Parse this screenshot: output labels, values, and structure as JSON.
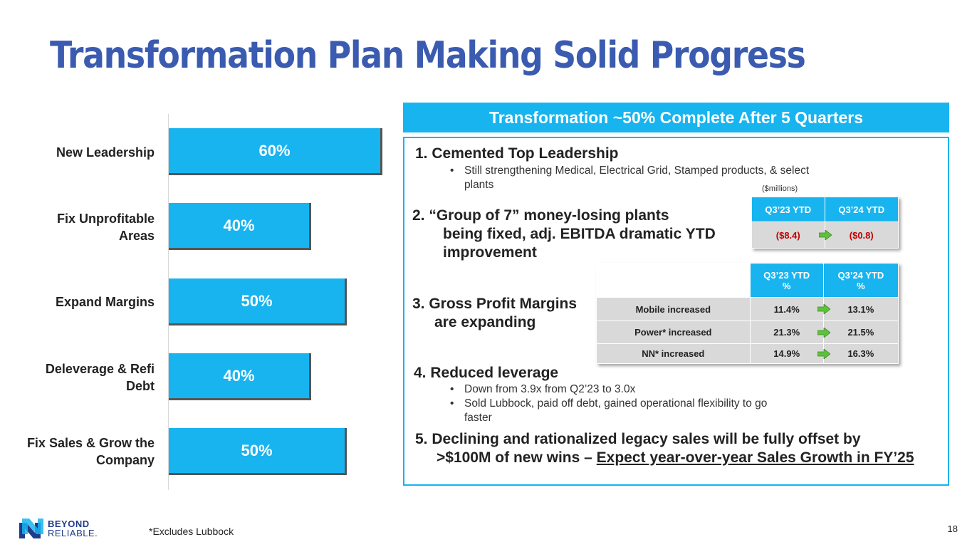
{
  "title": "Transformation Plan Making Solid Progress",
  "chart_data": {
    "type": "bar",
    "orientation": "horizontal",
    "categories": [
      "New Leadership",
      "Fix Unprofitable Areas",
      "Expand Margins",
      "Deleverage & Refi Debt",
      "Fix Sales & Grow the Company"
    ],
    "values": [
      60,
      40,
      50,
      40,
      50
    ],
    "value_labels": [
      "60%",
      "40%",
      "50%",
      "40%",
      "50%"
    ],
    "xlim": [
      0,
      100
    ]
  },
  "chart_cats": {
    "c0": "New Leadership",
    "c1a": "Fix Unprofitable",
    "c1b": "Areas",
    "c2": "Expand Margins",
    "c3a": "Deleverage & Refi",
    "c3b": "Debt",
    "c4a": "Fix Sales & Grow the",
    "c4b": "Company"
  },
  "banner": "Transformation ~50% Complete After 5 Quarters",
  "item1": {
    "heading": "1. Cemented Top Leadership",
    "bullet_line1": "Still strengthening Medical, Electrical Grid, Stamped products, & select",
    "bullet_line2": "plants"
  },
  "item2": {
    "line1": "2. “Group of 7” money-losing plants",
    "line2": "being fixed, adj. EBITDA dramatic YTD",
    "line3": "improvement",
    "units_note": "($millions)",
    "table": {
      "col1": "Q3’23 YTD",
      "col2": "Q3’24 YTD",
      "val1": "($8.4)",
      "val2": "($0.8)"
    }
  },
  "item3": {
    "line1": "3. Gross Profit Margins",
    "line2": "are expanding",
    "table": {
      "col1a": "Q3’23 YTD",
      "col1b": "%",
      "col2a": "Q3’24 YTD",
      "col2b": "%",
      "rows": [
        {
          "label": "Mobile increased",
          "v1": "11.4%",
          "v2": "13.1%"
        },
        {
          "label": "Power* increased",
          "v1": "21.3%",
          "v2": "21.5%"
        },
        {
          "label": "NN* increased",
          "v1": "14.9%",
          "v2": "16.3%"
        }
      ]
    }
  },
  "item4": {
    "heading": "4. Reduced leverage",
    "bullet1": "Down from 3.9x  from Q2’23 to 3.0x",
    "bullet2_line1": "Sold Lubbock, paid off debt, gained operational flexibility to go",
    "bullet2_line2": "faster"
  },
  "item5": {
    "line1": "5. Declining and rationalized legacy sales will be fully offset by",
    "line2_prefix": ">$100M of new wins – ",
    "line2_underlined": "Expect year-over-year Sales Growth in FY’25"
  },
  "footnote": "*Excludes Lubbock",
  "page_number": "18",
  "logo": {
    "line1": "BEYOND",
    "line2": "RELIABLE."
  },
  "colors": {
    "title": "#3a5bb0",
    "accent": "#18b4ef",
    "negative": "#c00000",
    "arrow": "#5ec13c"
  }
}
